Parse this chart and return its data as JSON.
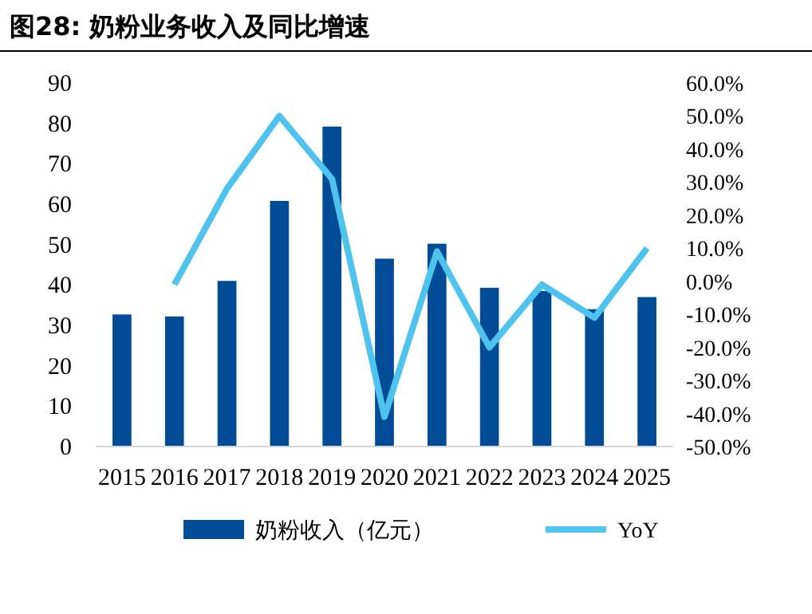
{
  "chart_data": {
    "type": "bar",
    "title": "图28:  奶粉业务收入及同比增速",
    "categories": [
      "2015",
      "2016",
      "2017",
      "2018",
      "2019",
      "2020",
      "2021",
      "2022",
      "2023",
      "2024",
      "2025"
    ],
    "series": [
      {
        "name": "奶粉收入（亿元）",
        "color": "#004c97",
        "values": [
          32.7,
          32.2,
          41,
          60.8,
          79.2,
          46.5,
          50.2,
          39.3,
          38.5,
          34,
          37
        ]
      },
      {
        "name": "YoY",
        "type": "line",
        "axis": "y2",
        "color": "#4ec3ee",
        "values": [
          null,
          -1,
          28,
          50,
          31,
          -41,
          9,
          -20,
          -1,
          -11,
          10
        ]
      }
    ],
    "ylim": [
      0,
      90
    ],
    "yticks": [
      0,
      10,
      20,
      30,
      40,
      50,
      60,
      70,
      80,
      90
    ],
    "y2lim": [
      -50,
      60
    ],
    "y2ticks": [
      {
        "value": 60,
        "label": "60.0%"
      },
      {
        "value": 50,
        "label": "50.0%"
      },
      {
        "value": 40,
        "label": "40.0%"
      },
      {
        "value": 30,
        "label": "30.0%"
      },
      {
        "value": 20,
        "label": "20.0%"
      },
      {
        "value": 10,
        "label": "10.0%"
      },
      {
        "value": 0,
        "label": "0.0%"
      },
      {
        "value": -10,
        "label": "-10.0%"
      },
      {
        "value": -20,
        "label": "-20.0%"
      },
      {
        "value": -30,
        "label": "-30.0%"
      },
      {
        "value": -40,
        "label": "-40.0%"
      },
      {
        "value": -50,
        "label": "-50.0%"
      }
    ],
    "legend": "bottom",
    "grid": false
  }
}
